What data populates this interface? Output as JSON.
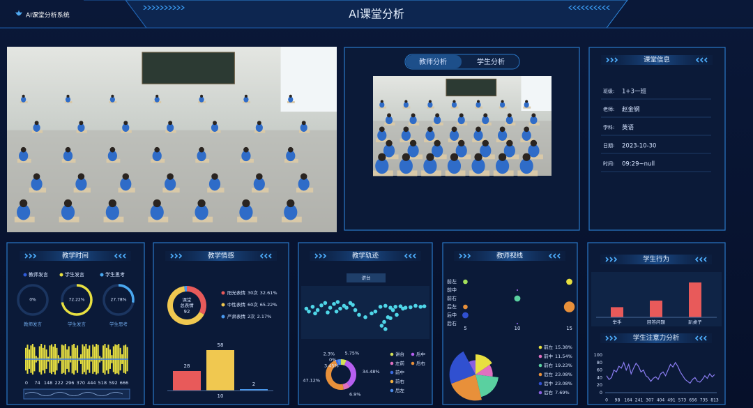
{
  "header": {
    "system_name": "AI课堂分析系统",
    "title": "AI课堂分析"
  },
  "analysis_tabs": [
    "教师分析",
    "学生分析"
  ],
  "class_info": {
    "title": "课堂信息",
    "rows": [
      {
        "label": "班级:",
        "value": "1+3一班"
      },
      {
        "label": "老师:",
        "value": "赵金钢"
      },
      {
        "label": "学科:",
        "value": "英语"
      },
      {
        "label": "日期:",
        "value": "2023-10-30"
      },
      {
        "label": "时间:",
        "value": "09:29~null"
      }
    ]
  },
  "chart_data": [
    {
      "type": "gauge",
      "title": "教学时间",
      "categories": [
        "教师发言",
        "学生发言",
        "学生思考"
      ],
      "values": [
        0,
        72.22,
        27.78
      ],
      "value_labels": [
        "0%",
        "72.22%",
        "27.78%"
      ],
      "colors": [
        "#2f5bd8",
        "#e8e040",
        "#4aa8f0"
      ]
    },
    {
      "type": "waveform",
      "color": "#e8e040",
      "xtick_labels": [
        0,
        74,
        148,
        222,
        296,
        370,
        444,
        518,
        592,
        666
      ],
      "values": [
        70,
        90,
        60,
        85,
        95,
        75,
        20,
        10,
        80,
        95,
        70,
        88,
        60,
        15,
        85,
        92,
        78,
        95,
        70,
        25,
        10,
        90,
        85,
        95,
        60,
        80,
        20,
        88,
        95,
        70,
        85,
        10,
        30,
        92,
        80,
        95,
        65,
        85,
        15,
        90,
        78,
        95,
        88,
        20,
        10,
        85,
        95,
        70,
        90,
        60,
        25,
        80,
        92,
        88,
        95,
        70,
        30,
        85,
        90,
        75
      ]
    },
    {
      "type": "donut",
      "title": "教学情感",
      "center_lines": [
        "课堂",
        "总表情"
      ],
      "center_value": 92,
      "categories": [
        "阳光表情",
        "中性表情",
        "严肃表情"
      ],
      "count_labels": [
        "30次",
        "60次",
        "2次"
      ],
      "values": [
        32.61,
        65.22,
        2.17
      ],
      "value_labels": [
        "32.61%",
        "65.22%",
        "2.17%"
      ],
      "colors": [
        "#e85a5a",
        "#f0c850",
        "#4a9af0"
      ]
    },
    {
      "type": "bar",
      "values": [
        28,
        58,
        2
      ],
      "colors": [
        "#e85a5a",
        "#f0c850",
        "#4a9af0"
      ],
      "x_label": "10"
    },
    {
      "type": "scatter",
      "title": "教学轨迹",
      "annotation": "讲台",
      "color": "#4fd6e8",
      "xlim": [
        0,
        100
      ],
      "ylim": [
        0,
        100
      ],
      "x": [
        3,
        8,
        12,
        15,
        18,
        22,
        25,
        28,
        30,
        33,
        20,
        27,
        35,
        40,
        10,
        5,
        38,
        42,
        45,
        50,
        55,
        58,
        62,
        66,
        70,
        74,
        78,
        82,
        86,
        90,
        94,
        97,
        72,
        68,
        65,
        63,
        66,
        70,
        75,
        80
      ],
      "y": [
        58,
        62,
        55,
        65,
        70,
        60,
        68,
        72,
        58,
        64,
        50,
        52,
        60,
        66,
        48,
        52,
        70,
        55,
        45,
        40,
        48,
        52,
        62,
        64,
        60,
        62,
        63,
        60,
        61,
        64,
        62,
        63,
        55,
        40,
        30,
        22,
        15,
        38,
        45,
        58
      ]
    },
    {
      "type": "donut",
      "categories": [
        "讲台",
        "后中",
        "左前",
        "后右",
        "前中",
        "前右",
        "后左"
      ],
      "values": [
        5.75,
        34.48,
        6.9,
        47.12,
        2.3,
        0,
        3.45
      ],
      "value_labels": [
        "5.75%",
        "34.48%",
        "6.9%",
        "47.12%",
        "2.3%",
        "0%",
        "3.45%"
      ],
      "colors": [
        "#d4e157",
        "#b65ff0",
        "#e070c0",
        "#e8903a",
        "#3a6ae0",
        "#f0b040",
        "#4a8ae8"
      ]
    },
    {
      "type": "bubble",
      "title": "教师视线",
      "categories": [
        "前左",
        "前中",
        "前右",
        "后左",
        "后中",
        "后右"
      ],
      "xlim": [
        4.5,
        15.5
      ],
      "xticks": [
        5,
        10,
        15
      ],
      "x": [
        5,
        15,
        10,
        5,
        10,
        15,
        5,
        10
      ],
      "y": [
        "前左",
        "前左",
        "前中",
        "后左",
        "前右",
        "后左",
        "后中",
        "后右"
      ],
      "size": [
        3,
        4,
        1,
        3,
        4,
        7,
        4,
        1
      ],
      "colors": [
        "#a3e05a",
        "#e8e040",
        "#a060e0",
        "#e8903a",
        "#5ad0a0",
        "#e8903a",
        "#3050d0",
        "#8060e0"
      ]
    },
    {
      "type": "rose",
      "categories": [
        "前左",
        "前中",
        "前右",
        "后左",
        "后中",
        "后右"
      ],
      "values": [
        15.38,
        11.54,
        19.23,
        23.08,
        23.08,
        7.69
      ],
      "value_labels": [
        "15.38%",
        "11.54%",
        "19.23%",
        "23.08%",
        "23.08%",
        "7.69%"
      ],
      "colors": [
        "#e8e040",
        "#e070c0",
        "#5ad0a0",
        "#e8903a",
        "#3050d0",
        "#8a60e0"
      ]
    },
    {
      "type": "bar",
      "title": "学生行为",
      "categories": [
        "举手",
        "回答问题",
        "趴桌子"
      ],
      "values": [
        14,
        23,
        48
      ],
      "color": "#e85a5a"
    },
    {
      "type": "line",
      "title": "学生注意力分析",
      "color": "#8a7cf0",
      "ylim": [
        0,
        100
      ],
      "yticks": [
        0,
        20,
        40,
        60,
        80,
        100
      ],
      "xtick_labels": [
        0,
        98,
        164,
        241,
        307,
        404,
        491,
        573,
        656,
        735,
        813
      ],
      "values": [
        45,
        35,
        40,
        60,
        55,
        70,
        65,
        80,
        60,
        75,
        50,
        65,
        78,
        70,
        55,
        60,
        45,
        40,
        30,
        38,
        42,
        35,
        50,
        55,
        45,
        60,
        75,
        68,
        80,
        70,
        55,
        45,
        35,
        30,
        25,
        35,
        40,
        30,
        28,
        35,
        45,
        38,
        50,
        42,
        48
      ]
    }
  ]
}
